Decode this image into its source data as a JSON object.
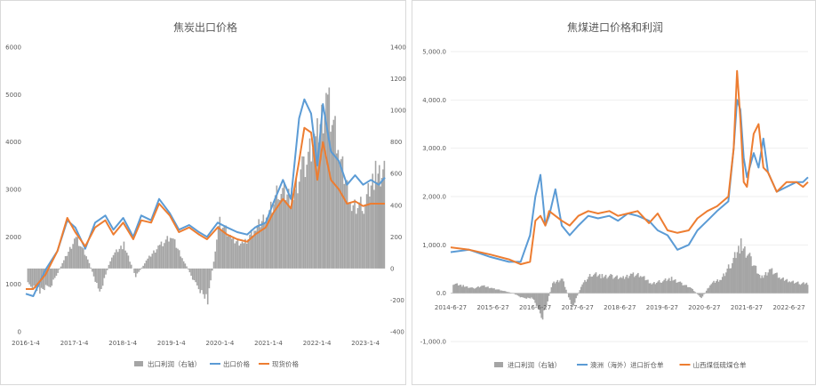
{
  "chart_data": [
    {
      "type": "line",
      "title": "焦炭出口价格",
      "y_left": {
        "min": 0,
        "max": 6000,
        "ticks": [
          "0",
          "1000",
          "2000",
          "3000",
          "4000",
          "5000",
          "6000"
        ]
      },
      "y_right": {
        "min": -400,
        "max": 1400,
        "ticks": [
          "-400",
          "-200",
          "0",
          "200",
          "400",
          "600",
          "800",
          "1000",
          "1200",
          "1400"
        ]
      },
      "x_ticks": [
        "2016-1-4",
        "2017-1-4",
        "2018-1-4",
        "2019-1-4",
        "2020-1-4",
        "2021-1-4",
        "2022-1-4",
        "2023-1-4"
      ],
      "x_range": [
        "2016-01-04",
        "2023-06-30"
      ],
      "legend_position": "bottom",
      "series": [
        {
          "name": "出口利润（右轴）",
          "type": "bar",
          "axis": "right",
          "color": "#a5a5a5",
          "x": [
            "2016-01",
            "2016-04",
            "2016-07",
            "2016-10",
            "2017-01",
            "2017-04",
            "2017-07",
            "2017-10",
            "2018-01",
            "2018-04",
            "2018-07",
            "2018-10",
            "2019-01",
            "2019-04",
            "2019-07",
            "2019-10",
            "2020-01",
            "2020-04",
            "2020-07",
            "2020-10",
            "2021-01",
            "2021-04",
            "2021-07",
            "2021-10",
            "2022-01",
            "2022-04",
            "2022-07",
            "2022-10",
            "2023-01",
            "2023-04"
          ],
          "values": [
            -100,
            -140,
            -100,
            50,
            200,
            60,
            -160,
            80,
            150,
            -50,
            60,
            150,
            200,
            50,
            -100,
            -200,
            300,
            180,
            160,
            250,
            350,
            500,
            450,
            650,
            800,
            1100,
            700,
            400,
            400,
            600
          ]
        },
        {
          "name": "出口价格",
          "type": "line",
          "axis": "left",
          "color": "#5b9bd5",
          "x": [
            "2016-01-04",
            "2016-03-01",
            "2016-06-01",
            "2016-09-01",
            "2016-11-15",
            "2017-01-15",
            "2017-04-01",
            "2017-06-15",
            "2017-09-01",
            "2017-11-01",
            "2018-01-15",
            "2018-04-01",
            "2018-06-01",
            "2018-08-15",
            "2018-10-15",
            "2019-01-04",
            "2019-03-15",
            "2019-06-01",
            "2019-08-15",
            "2019-10-15",
            "2020-01-04",
            "2020-03-15",
            "2020-06-01",
            "2020-08-15",
            "2020-10-15",
            "2021-01-04",
            "2021-03-01",
            "2021-05-15",
            "2021-07-15",
            "2021-09-15",
            "2021-10-25",
            "2021-12-15",
            "2022-02-01",
            "2022-03-15",
            "2022-05-15",
            "2022-07-15",
            "2022-09-15",
            "2022-11-15",
            "2023-01-15",
            "2023-03-15",
            "2023-05-15",
            "2023-06-30"
          ],
          "values": [
            800,
            750,
            1300,
            1700,
            2350,
            2200,
            1750,
            2300,
            2450,
            2150,
            2400,
            2000,
            2450,
            2350,
            2800,
            2500,
            2150,
            2250,
            2100,
            2000,
            2300,
            2200,
            2100,
            2050,
            2200,
            2300,
            2700,
            3200,
            2800,
            4500,
            4900,
            4600,
            3500,
            4800,
            3800,
            3600,
            3100,
            3300,
            3100,
            3200,
            3100,
            3250
          ]
        },
        {
          "name": "现货价格",
          "type": "line",
          "axis": "left",
          "color": "#ed7d31",
          "x": [
            "2016-01-04",
            "2016-03-01",
            "2016-06-01",
            "2016-09-01",
            "2016-11-15",
            "2017-01-15",
            "2017-04-01",
            "2017-06-15",
            "2017-09-01",
            "2017-11-01",
            "2018-01-15",
            "2018-04-01",
            "2018-06-01",
            "2018-08-15",
            "2018-10-15",
            "2019-01-04",
            "2019-03-15",
            "2019-06-01",
            "2019-08-15",
            "2019-10-15",
            "2020-01-04",
            "2020-03-15",
            "2020-06-01",
            "2020-08-15",
            "2020-10-15",
            "2021-01-04",
            "2021-03-01",
            "2021-05-15",
            "2021-07-15",
            "2021-09-15",
            "2021-10-25",
            "2021-12-15",
            "2022-02-01",
            "2022-03-15",
            "2022-05-15",
            "2022-07-15",
            "2022-09-15",
            "2022-11-15",
            "2023-01-15",
            "2023-03-15",
            "2023-05-15",
            "2023-06-30"
          ],
          "values": [
            900,
            900,
            1200,
            1700,
            2400,
            2100,
            1800,
            2200,
            2350,
            2050,
            2300,
            1950,
            2350,
            2300,
            2700,
            2450,
            2100,
            2200,
            2050,
            1950,
            2200,
            2050,
            1950,
            1900,
            2050,
            2200,
            2500,
            2800,
            2600,
            3600,
            4300,
            4200,
            3200,
            4000,
            3200,
            3000,
            2700,
            2750,
            2650,
            2700,
            2700,
            2700
          ]
        }
      ]
    },
    {
      "type": "line",
      "title": "焦煤进口价格和利润",
      "y": {
        "min": -1000,
        "max": 5000,
        "ticks": [
          "-1,000.0",
          "0.0",
          "1,000.0",
          "2,000.0",
          "3,000.0",
          "4,000.0",
          "5,000.0"
        ]
      },
      "x_ticks": [
        "2014-6-27",
        "2015-6-27",
        "2016-6-27",
        "2017-6-27",
        "2018-6-27",
        "2019-6-27",
        "2020-6-27",
        "2021-6-27",
        "2022-6-27"
      ],
      "x_range": [
        "2014-06-27",
        "2023-06-30"
      ],
      "legend_position": "bottom",
      "series": [
        {
          "name": "进口利润（右轴）",
          "type": "bar",
          "color": "#a5a5a5",
          "x": [
            "2014-07",
            "2014-10",
            "2015-01",
            "2015-04",
            "2015-07",
            "2015-10",
            "2016-01",
            "2016-04",
            "2016-07",
            "2016-10",
            "2017-01",
            "2017-04",
            "2017-07",
            "2017-10",
            "2018-01",
            "2018-04",
            "2018-07",
            "2018-10",
            "2019-01",
            "2019-04",
            "2019-07",
            "2019-10",
            "2020-01",
            "2020-04",
            "2020-07",
            "2020-10",
            "2021-01",
            "2021-04",
            "2021-07",
            "2021-10",
            "2022-01",
            "2022-04",
            "2022-07",
            "2022-10",
            "2023-01",
            "2023-04"
          ],
          "values": [
            200,
            150,
            100,
            150,
            100,
            50,
            0,
            -100,
            -100,
            -500,
            200,
            300,
            -300,
            200,
            400,
            350,
            350,
            300,
            400,
            350,
            200,
            250,
            300,
            200,
            100,
            -100,
            200,
            300,
            600,
            1000,
            700,
            300,
            500,
            300,
            250,
            200
          ]
        },
        {
          "name": "澳洲（海外）进口折仓单",
          "type": "line",
          "color": "#5b9bd5",
          "x": [
            "2014-06-27",
            "2014-12-15",
            "2015-06-27",
            "2015-12-15",
            "2016-04-01",
            "2016-06-27",
            "2016-08-15",
            "2016-10-01",
            "2016-11-15",
            "2016-12-20",
            "2017-02-15",
            "2017-04-15",
            "2017-06-27",
            "2017-09-15",
            "2017-12-15",
            "2018-03-15",
            "2018-06-27",
            "2018-09-15",
            "2018-12-15",
            "2019-03-15",
            "2019-06-27",
            "2019-09-15",
            "2019-12-15",
            "2020-03-15",
            "2020-06-27",
            "2020-09-15",
            "2020-12-15",
            "2021-03-15",
            "2021-06-27",
            "2021-08-15",
            "2021-09-15",
            "2021-10-15",
            "2021-11-15",
            "2021-12-15",
            "2022-02-15",
            "2022-04-01",
            "2022-05-15",
            "2022-06-27",
            "2022-09-15",
            "2022-12-15",
            "2023-03-15",
            "2023-05-15",
            "2023-06-30"
          ],
          "values": [
            850,
            900,
            750,
            650,
            650,
            1200,
            2000,
            2450,
            1400,
            1600,
            2150,
            1400,
            1200,
            1400,
            1600,
            1550,
            1600,
            1500,
            1650,
            1600,
            1500,
            1300,
            1200,
            900,
            1000,
            1300,
            1500,
            1700,
            1900,
            3000,
            4000,
            3800,
            2800,
            2400,
            2900,
            2600,
            3200,
            2500,
            2100,
            2200,
            2300,
            2300,
            2400
          ]
        },
        {
          "name": "山西煤低硫煤仓单",
          "type": "line",
          "color": "#ed7d31",
          "x": [
            "2014-06-27",
            "2014-12-15",
            "2015-06-27",
            "2015-12-15",
            "2016-04-01",
            "2016-06-27",
            "2016-08-15",
            "2016-10-01",
            "2016-11-15",
            "2016-12-20",
            "2017-02-15",
            "2017-04-15",
            "2017-06-27",
            "2017-09-15",
            "2017-12-15",
            "2018-03-15",
            "2018-06-27",
            "2018-09-15",
            "2018-12-15",
            "2019-03-15",
            "2019-06-27",
            "2019-09-15",
            "2019-12-15",
            "2020-03-15",
            "2020-06-27",
            "2020-09-15",
            "2020-12-15",
            "2021-03-15",
            "2021-06-27",
            "2021-08-15",
            "2021-09-15",
            "2021-10-15",
            "2021-11-15",
            "2021-12-15",
            "2022-02-15",
            "2022-04-01",
            "2022-05-15",
            "2022-06-27",
            "2022-09-15",
            "2022-12-15",
            "2023-03-15",
            "2023-05-15",
            "2023-06-30"
          ],
          "values": [
            950,
            900,
            800,
            700,
            600,
            650,
            1500,
            1600,
            1400,
            1700,
            1600,
            1500,
            1400,
            1600,
            1700,
            1650,
            1700,
            1600,
            1650,
            1700,
            1450,
            1650,
            1300,
            1250,
            1300,
            1550,
            1700,
            1800,
            2000,
            3000,
            4600,
            3600,
            2300,
            2200,
            3300,
            3500,
            2600,
            2500,
            2100,
            2300,
            2300,
            2200,
            2300
          ]
        }
      ]
    }
  ]
}
